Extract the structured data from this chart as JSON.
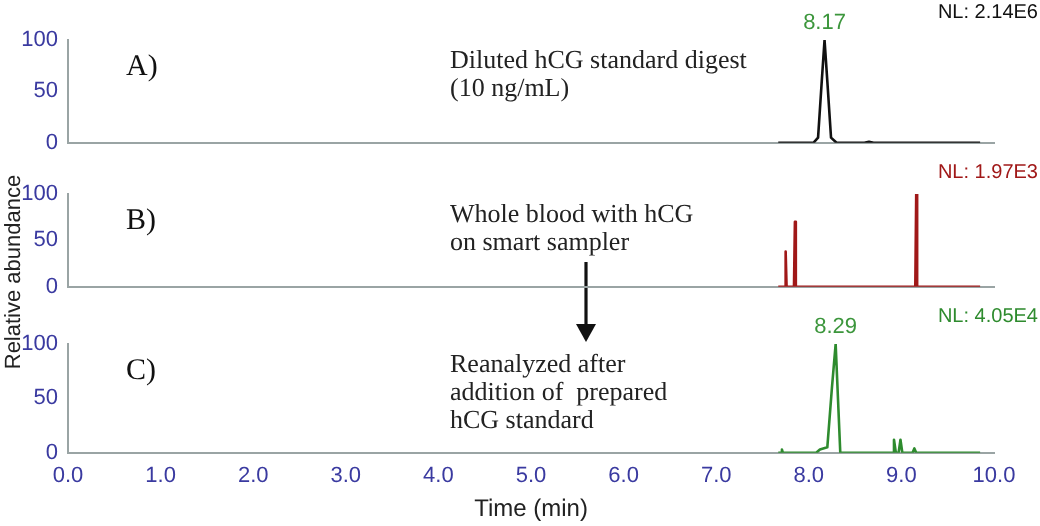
{
  "chart_data": [
    {
      "type": "line",
      "color": "#111111",
      "xlim": [
        0,
        10
      ],
      "ylim": [
        0,
        100
      ],
      "yticks": [
        0,
        50,
        100
      ],
      "tick_labels": "y",
      "x": [
        7.67,
        8.05,
        8.1,
        8.14,
        8.17,
        8.2,
        8.24,
        8.3,
        8.6,
        8.65,
        8.7,
        9.85
      ],
      "values": [
        0,
        0,
        5,
        60,
        100,
        60,
        5,
        0,
        0,
        1,
        0,
        0
      ],
      "annotations": [
        "A)",
        "Diluted hCG standard digest\n(10 ng/mL)",
        "NL: 2.14E6",
        {
          "text": "8.17",
          "x": 8.17,
          "y": 100
        }
      ]
    },
    {
      "type": "line",
      "color": "#a01818",
      "xlim": [
        0,
        10
      ],
      "ylim": [
        0,
        100
      ],
      "yticks": [
        0,
        50,
        100
      ],
      "tick_labels": "y",
      "ylabel": "Relative abundance",
      "x": [
        7.67,
        7.74,
        7.75,
        7.76,
        7.84,
        7.85,
        7.86,
        9.15,
        9.16,
        9.17,
        9.85
      ],
      "values": [
        0,
        0,
        38,
        0,
        0,
        70,
        0,
        0,
        100,
        0,
        0
      ],
      "annotations": [
        "B)",
        "Whole blood with hCG\non smart sampler",
        "NL: 1.97E3"
      ]
    },
    {
      "type": "line",
      "color": "#2e8b2e",
      "xlim": [
        0,
        10
      ],
      "ylim": [
        0,
        100
      ],
      "yticks": [
        0,
        50,
        100
      ],
      "xlabel": "Time (min)",
      "xticks": [
        {
          "value": 0,
          "label": "0.0"
        },
        {
          "value": 1,
          "label": "1.0"
        },
        {
          "value": 2,
          "label": "2.0"
        },
        {
          "value": 3,
          "label": "3.0"
        },
        {
          "value": 4,
          "label": "4.0"
        },
        {
          "value": 5,
          "label": "5.0"
        },
        {
          "value": 6,
          "label": "6.0"
        },
        {
          "value": 7,
          "label": "7.0"
        },
        {
          "value": 8,
          "label": "8.0"
        },
        {
          "value": 9,
          "label": "9.0"
        },
        {
          "value": 10,
          "label": "10.0"
        }
      ],
      "x": [
        7.67,
        7.7,
        7.71,
        7.72,
        8.08,
        8.12,
        8.2,
        8.25,
        8.29,
        8.32,
        8.34,
        8.9,
        8.92,
        8.94,
        8.97,
        8.99,
        9.01,
        9.12,
        9.14,
        9.16,
        9.85
      ],
      "values": [
        0,
        0,
        3,
        0,
        0,
        3,
        5,
        60,
        100,
        40,
        0,
        0,
        12,
        0,
        0,
        12,
        0,
        0,
        4,
        0,
        0
      ],
      "annotations": [
        "C)",
        "Reanalyzed after\naddition of  prepared\nhCG standard",
        "NL: 4.05E4",
        {
          "text": "8.29",
          "x": 8.29,
          "y": 100
        }
      ]
    }
  ]
}
